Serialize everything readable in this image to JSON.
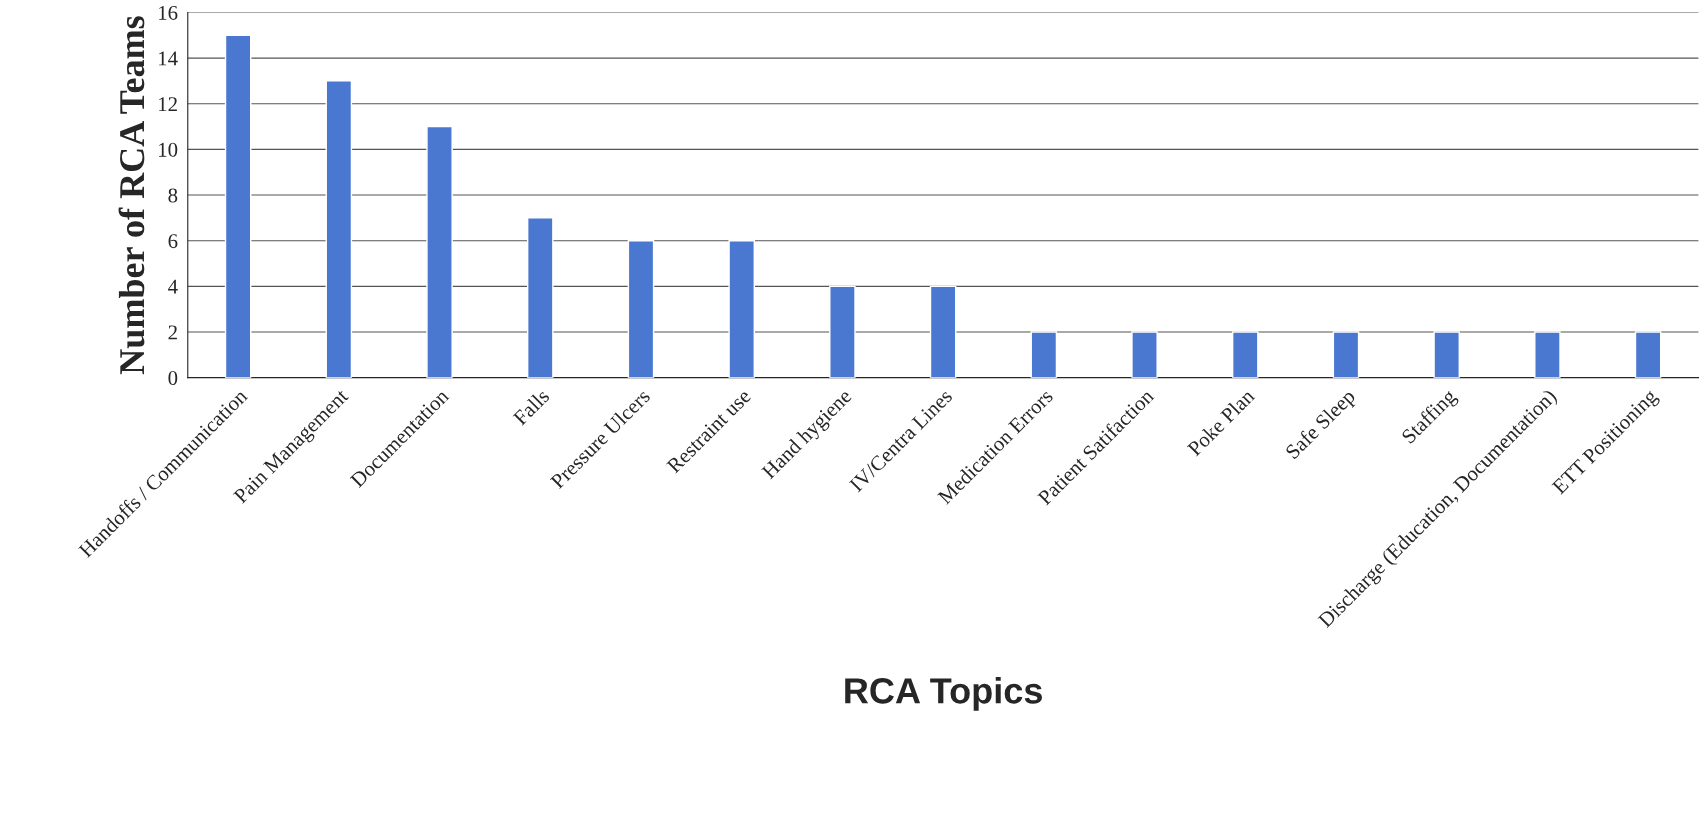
{
  "chart_data": {
    "type": "bar",
    "xlabel": "RCA Topics",
    "ylabel": "Number of RCA Teams",
    "categories": [
      "Handoffs / Communication",
      "Pain Management",
      "Documentation",
      "Falls",
      "Pressure Ulcers",
      "Restraint use",
      "Hand hygiene",
      "IV/Centra Lines",
      "Medication Errors",
      "Patient Satifaction",
      "Poke Plan",
      "Safe Sleep",
      "Staffing",
      "Discharge (Education, Documentation)",
      "ETT Positioning"
    ],
    "values": [
      15,
      13,
      11,
      7,
      6,
      6,
      4,
      4,
      2,
      2,
      2,
      2,
      2,
      2,
      2
    ],
    "color": "#4a78d0",
    "ylim": [
      0,
      16
    ],
    "yticks": [
      0,
      2,
      4,
      6,
      8,
      10,
      12,
      14,
      16
    ],
    "grid": "y"
  }
}
